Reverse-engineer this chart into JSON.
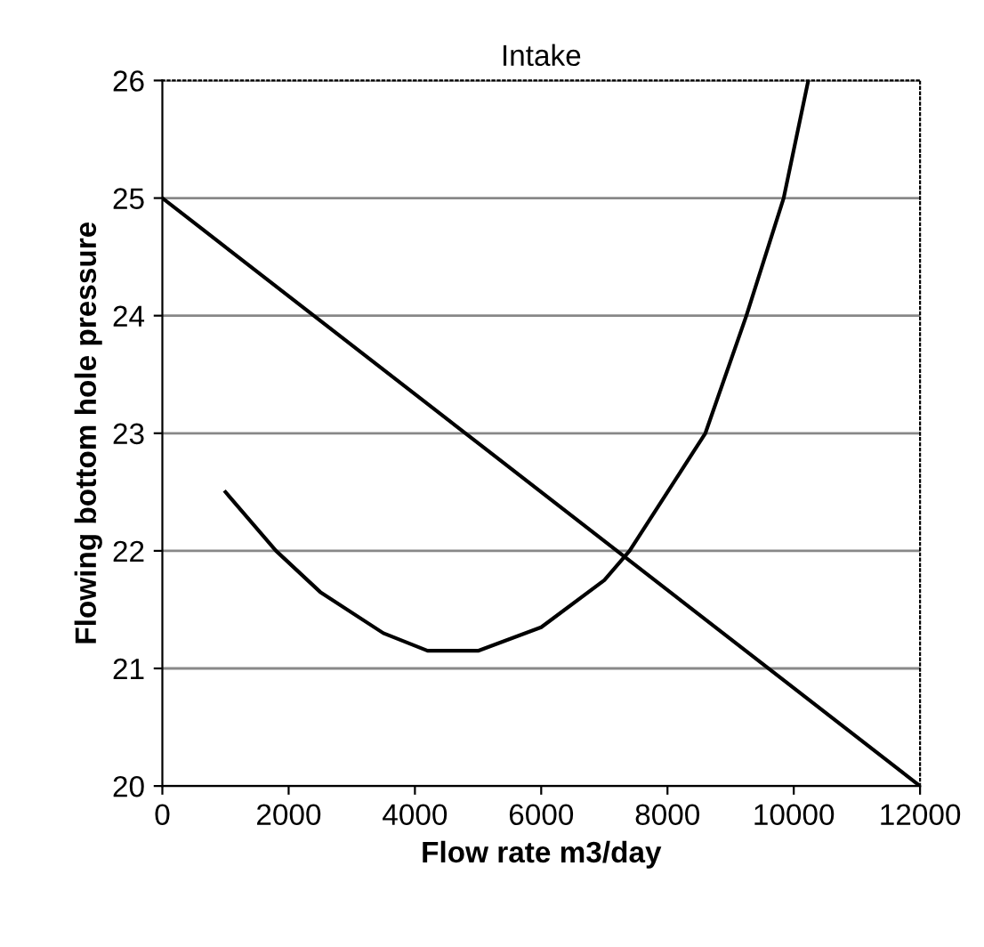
{
  "chart_data": {
    "type": "line",
    "title": "Intake",
    "xlabel": "Flow rate m3/day",
    "ylabel": "Flowing bottom hole pressure",
    "xlim": [
      0,
      12000
    ],
    "ylim": [
      20,
      26
    ],
    "xticks": [
      0,
      2000,
      4000,
      6000,
      8000,
      10000,
      12000
    ],
    "yticks": [
      20,
      21,
      22,
      23,
      24,
      25,
      26
    ],
    "grid": "y",
    "marker": "none",
    "line_style": "solid",
    "series": [
      {
        "color": "#000000",
        "x": [
          0,
          12000
        ],
        "values": [
          25,
          20
        ]
      },
      {
        "color": "#000000",
        "x": [
          1000,
          1800,
          2500,
          3500,
          4200,
          5000,
          6000,
          7000,
          7400,
          8000,
          8600,
          9250,
          9840,
          10230
        ],
        "values": [
          22.5,
          22.0,
          21.65,
          21.3,
          21.15,
          21.15,
          21.35,
          21.75,
          22.0,
          22.5,
          23.0,
          24,
          25,
          26
        ]
      }
    ]
  }
}
